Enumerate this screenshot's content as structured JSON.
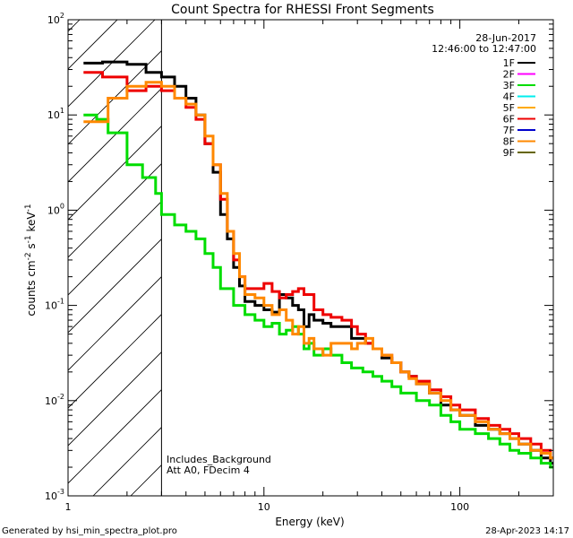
{
  "chart_data": {
    "type": "line",
    "title": "Count Spectra for RHESSI Front Segments",
    "xlabel": "Energy (keV)",
    "ylabel": "counts cm",
    "ylabel_parts": {
      "base1": "counts cm",
      "sup1": "-2",
      "base2": " s",
      "sup2": "-1",
      "base3": " keV",
      "sup3": "-1"
    },
    "xscale": "log",
    "yscale": "log",
    "xlim": [
      1,
      300
    ],
    "ylim": [
      0.001,
      100
    ],
    "x_ticks": [
      {
        "v": 10,
        "label": "10"
      },
      {
        "v": 100,
        "label": "100"
      }
    ],
    "y_ticks": [
      {
        "v": 0.001,
        "base": "10",
        "exp": "-3"
      },
      {
        "v": 0.01,
        "base": "10",
        "exp": "-2"
      },
      {
        "v": 0.1,
        "base": "10",
        "exp": "-1"
      },
      {
        "v": 1,
        "base": "10",
        "exp": "0"
      },
      {
        "v": 10,
        "base": "10",
        "exp": "1"
      },
      {
        "v": 100,
        "base": "10",
        "exp": "2"
      }
    ],
    "x_label_1": "1",
    "attenuator_cutoff_kev": 3,
    "legend": {
      "date": "28-Jun-2017",
      "time_range": "12:46:00 to 12:47:00",
      "position": "top-right",
      "entries": [
        {
          "label": "1F",
          "color": "#000000"
        },
        {
          "label": "2F",
          "color": "#ff00ff"
        },
        {
          "label": "3F",
          "color": "#00dd00"
        },
        {
          "label": "4F",
          "color": "#00eeee"
        },
        {
          "label": "5F",
          "color": "#ffaa00"
        },
        {
          "label": "6F",
          "color": "#ee0000"
        },
        {
          "label": "7F",
          "color": "#0000cc"
        },
        {
          "label": "8F",
          "color": "#ff8800"
        },
        {
          "label": "9F",
          "color": "#666600"
        }
      ]
    },
    "annotations": [
      "Includes_Background",
      "Att A0, FDecim 4"
    ],
    "series": [
      {
        "name": "1F",
        "color": "#000000",
        "x": [
          1.2,
          1.5,
          2.0,
          2.5,
          3.0,
          3.5,
          4.0,
          4.5,
          5.0,
          5.5,
          6.0,
          6.5,
          7.0,
          7.5,
          8.0,
          9.0,
          10.0,
          11.0,
          12.0,
          13.0,
          14.0,
          15.0,
          16.0,
          17.0,
          18.0,
          20.0,
          22.0,
          25.0,
          28.0,
          30.0,
          33.0,
          36.0,
          40.0,
          45.0,
          50.0,
          55.0,
          60.0,
          70.0,
          80.0,
          90.0,
          100.0,
          120.0,
          140.0,
          160.0,
          180.0,
          200.0,
          230.0,
          260.0,
          290.0
        ],
        "values": [
          35,
          36,
          34,
          28,
          25,
          20,
          15,
          10,
          5,
          2.5,
          0.9,
          0.5,
          0.25,
          0.16,
          0.11,
          0.1,
          0.09,
          0.085,
          0.13,
          0.12,
          0.1,
          0.09,
          0.06,
          0.08,
          0.07,
          0.065,
          0.06,
          0.06,
          0.045,
          0.045,
          0.04,
          0.035,
          0.028,
          0.025,
          0.02,
          0.018,
          0.015,
          0.012,
          0.009,
          0.008,
          0.007,
          0.0055,
          0.005,
          0.0045,
          0.004,
          0.0035,
          0.003,
          0.0025,
          0.0022
        ]
      },
      {
        "name": "3F",
        "color": "#00dd00",
        "x": [
          1.2,
          1.4,
          1.6,
          2.0,
          2.4,
          2.8,
          3.0,
          3.5,
          4.0,
          4.5,
          5.0,
          5.5,
          6.0,
          7.0,
          8.0,
          9.0,
          10.0,
          11.0,
          12.0,
          13.0,
          14.0,
          15.0,
          16.0,
          17.0,
          18.0,
          20.0,
          22.0,
          25.0,
          28.0,
          32.0,
          36.0,
          40.0,
          45.0,
          50.0,
          60.0,
          70.0,
          80.0,
          90.0,
          100.0,
          120.0,
          140.0,
          160.0,
          180.0,
          200.0,
          230.0,
          260.0,
          290.0
        ],
        "values": [
          10,
          9,
          6.5,
          3,
          2.2,
          1.5,
          0.9,
          0.7,
          0.6,
          0.5,
          0.35,
          0.25,
          0.15,
          0.1,
          0.08,
          0.07,
          0.06,
          0.065,
          0.05,
          0.055,
          0.06,
          0.05,
          0.035,
          0.04,
          0.03,
          0.035,
          0.03,
          0.025,
          0.022,
          0.02,
          0.018,
          0.016,
          0.014,
          0.012,
          0.01,
          0.009,
          0.007,
          0.006,
          0.005,
          0.0045,
          0.004,
          0.0035,
          0.003,
          0.0028,
          0.0025,
          0.0022,
          0.002
        ]
      },
      {
        "name": "6F",
        "color": "#ee0000",
        "x": [
          1.2,
          1.5,
          2.0,
          2.5,
          3.0,
          3.5,
          4.0,
          4.5,
          5.0,
          5.5,
          6.0,
          6.5,
          7.0,
          7.5,
          8.0,
          9.0,
          10.0,
          11.0,
          12.0,
          13.0,
          14.0,
          15.0,
          16.0,
          18.0,
          20.0,
          22.0,
          25.0,
          28.0,
          30.0,
          33.0,
          36.0,
          40.0,
          45.0,
          50.0,
          55.0,
          60.0,
          70.0,
          80.0,
          90.0,
          100.0,
          120.0,
          140.0,
          160.0,
          180.0,
          200.0,
          230.0,
          260.0,
          290.0
        ],
        "values": [
          28,
          25,
          18,
          20,
          18,
          15,
          12,
          9,
          5,
          3,
          1.3,
          0.6,
          0.3,
          0.2,
          0.15,
          0.15,
          0.17,
          0.14,
          0.12,
          0.13,
          0.14,
          0.15,
          0.13,
          0.09,
          0.08,
          0.075,
          0.07,
          0.06,
          0.05,
          0.04,
          0.035,
          0.03,
          0.025,
          0.02,
          0.018,
          0.016,
          0.013,
          0.011,
          0.009,
          0.008,
          0.0065,
          0.0055,
          0.005,
          0.0045,
          0.004,
          0.0035,
          0.003,
          0.0025
        ]
      },
      {
        "name": "8F",
        "color": "#ff8800",
        "x": [
          1.2,
          1.4,
          1.6,
          2.0,
          2.5,
          3.0,
          3.5,
          4.0,
          4.5,
          5.0,
          5.5,
          6.0,
          6.5,
          7.0,
          7.5,
          8.0,
          9.0,
          10.0,
          11.0,
          12.0,
          13.0,
          14.0,
          15.0,
          16.0,
          17.0,
          18.0,
          20.0,
          22.0,
          25.0,
          28.0,
          30.0,
          33.0,
          36.0,
          40.0,
          45.0,
          50.0,
          55.0,
          60.0,
          70.0,
          80.0,
          90.0,
          100.0,
          120.0,
          140.0,
          160.0,
          180.0,
          200.0,
          230.0,
          260.0,
          290.0
        ],
        "values": [
          8.5,
          8.5,
          15,
          20,
          22,
          20,
          15,
          13,
          10,
          6,
          3,
          1.5,
          0.6,
          0.35,
          0.2,
          0.13,
          0.12,
          0.1,
          0.08,
          0.09,
          0.07,
          0.05,
          0.06,
          0.04,
          0.045,
          0.035,
          0.03,
          0.04,
          0.04,
          0.035,
          0.04,
          0.045,
          0.035,
          0.03,
          0.025,
          0.02,
          0.017,
          0.015,
          0.012,
          0.01,
          0.008,
          0.007,
          0.006,
          0.005,
          0.0045,
          0.004,
          0.0035,
          0.003,
          0.0028,
          0.0025
        ]
      }
    ]
  },
  "footer": {
    "generated_by": "Generated by hsi_min_spectra_plot.pro",
    "timestamp": "28-Apr-2023 14:17"
  }
}
